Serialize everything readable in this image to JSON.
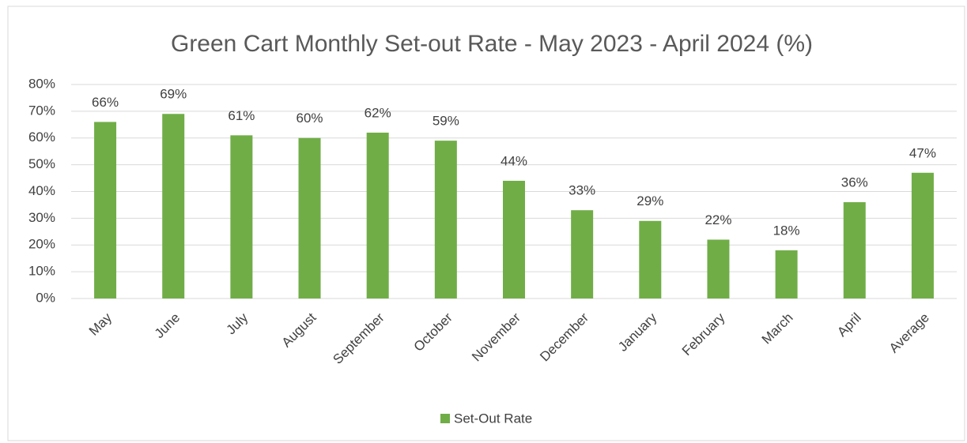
{
  "chart_data": {
    "type": "bar",
    "title": "Green Cart Monthly Set-out Rate - May 2023 - April 2024 (%)",
    "categories": [
      "May",
      "June",
      "July",
      "August",
      "September",
      "October",
      "November",
      "December",
      "January",
      "February",
      "March",
      "April",
      "Average"
    ],
    "series": [
      {
        "name": "Set-Out Rate",
        "color": "#70ad47",
        "values": [
          66,
          69,
          61,
          60,
          62,
          59,
          44,
          33,
          29,
          22,
          18,
          36,
          47
        ],
        "value_labels": [
          "66%",
          "69%",
          "61%",
          "60%",
          "62%",
          "59%",
          "44%",
          "33%",
          "29%",
          "22%",
          "18%",
          "36%",
          "47%"
        ]
      }
    ],
    "ylim": [
      0,
      80
    ],
    "yticks": [
      {
        "value": 0,
        "label": "0%"
      },
      {
        "value": 10,
        "label": "10%"
      },
      {
        "value": 20,
        "label": "20%"
      },
      {
        "value": 30,
        "label": "30%"
      },
      {
        "value": 40,
        "label": "40%"
      },
      {
        "value": 50,
        "label": "50%"
      },
      {
        "value": 60,
        "label": "60%"
      },
      {
        "value": 70,
        "label": "70%"
      },
      {
        "value": 80,
        "label": "80%"
      }
    ],
    "grid": true,
    "legend": "bottom"
  }
}
